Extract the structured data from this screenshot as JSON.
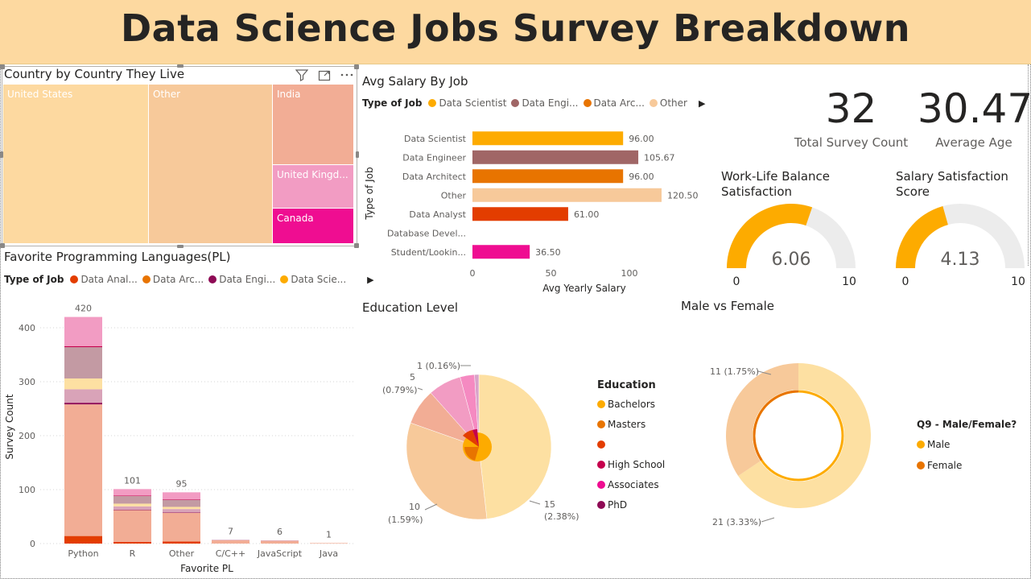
{
  "header": {
    "title": "Data Science Jobs Survey Breakdown"
  },
  "colors": {
    "header_bg": "#fdd9a0",
    "orange": "#fdab00",
    "mauve": "#a06666",
    "dark_orange": "#e87400",
    "peach": "#f7c99a",
    "red_orange": "#e33d00",
    "magenta": "#ef0d91",
    "pink": "#f58ac1",
    "salmon": "#f2ad95",
    "crimson": "#c5004d",
    "purple": "#8e0a55",
    "light_yellow": "#fde0a2",
    "gauge_bg": "#ececec"
  },
  "treemap": {
    "title": "Country by Country They Live",
    "toolbar": {
      "filter_icon": "filter-icon",
      "focus_icon": "focus-mode-icon",
      "more_icon": "more-options-icon"
    },
    "tiles": [
      {
        "label": "United States",
        "color": "#fdd9a0"
      },
      {
        "label": "Other",
        "color": "#f7c99a"
      },
      {
        "label": "India",
        "color": "#f2ad95"
      },
      {
        "label": "United Kingd...",
        "color": "#f29cc3"
      },
      {
        "label": "Canada",
        "color": "#ef0d91"
      }
    ]
  },
  "salary_chart": {
    "title": "Avg Salary By Job",
    "legend": {
      "title": "Type of Job",
      "items": [
        {
          "label": "Data Scientist",
          "color": "#fdab00"
        },
        {
          "label": "Data Engi...",
          "color": "#a06666"
        },
        {
          "label": "Data Arc...",
          "color": "#e87400"
        },
        {
          "label": "Other",
          "color": "#f7c99a"
        }
      ]
    },
    "ylabel": "Type of Job",
    "xlabel": "Avg Yearly Salary"
  },
  "kpis": {
    "total_survey_count": {
      "value": "32",
      "label": "Total Survey Count"
    },
    "average_age": {
      "value": "30.47",
      "label": "Average Age"
    }
  },
  "gauges": {
    "work_life": {
      "title_line1": "Work-Life Balance",
      "title_line2": "Satisfaction",
      "value_label": "6.06",
      "min_label": "0",
      "max_label": "10",
      "value": 6.06,
      "max": 10
    },
    "salary_sat": {
      "title_line1": "Salary Satisfaction",
      "title_line2": "Score",
      "value_label": "4.13",
      "min_label": "0",
      "max_label": "10",
      "value": 4.13,
      "max": 10
    }
  },
  "pl_chart": {
    "title": "Favorite Programming Languages(PL)",
    "legend": {
      "title": "Type of Job",
      "items": [
        {
          "label": "Data Anal...",
          "color": "#e33d00"
        },
        {
          "label": "Data Arc...",
          "color": "#e87400"
        },
        {
          "label": "Data Engi...",
          "color": "#8e0a55"
        },
        {
          "label": "Data Scie...",
          "color": "#fdab00"
        }
      ]
    },
    "xlabel": "Favorite PL",
    "ylabel": "Survey Count"
  },
  "education": {
    "title": "Education Level",
    "legend_title": "Education",
    "legend_items": [
      {
        "label": "Bachelors",
        "color": "#fdab00"
      },
      {
        "label": "Masters",
        "color": "#e87400"
      },
      {
        "label": "",
        "color": "#e33d00"
      },
      {
        "label": "High School",
        "color": "#c5004d"
      },
      {
        "label": "Associates",
        "color": "#ef0d91"
      },
      {
        "label": "PhD",
        "color": "#8e0a55"
      }
    ],
    "data_labels": [
      {
        "line1": "1 (0.16%)",
        "line2": ""
      },
      {
        "line1": "5",
        "line2": "(0.79%)"
      },
      {
        "line1": "10",
        "line2": "(1.59%)"
      },
      {
        "line1": "15",
        "line2": "(2.38%)"
      }
    ]
  },
  "gender": {
    "title": "Male vs Female",
    "legend_title": "Q9 - Male/Female?",
    "legend_items": [
      {
        "label": "Male",
        "color": "#fdab00"
      },
      {
        "label": "Female",
        "color": "#e87400"
      }
    ],
    "data_labels": [
      "11 (1.75%)",
      "21 (3.33%)"
    ]
  },
  "chart_data": [
    {
      "type": "bar",
      "orientation": "horizontal",
      "title": "Avg Salary By Job",
      "xlabel": "Avg Yearly Salary",
      "ylabel": "Type of Job",
      "xlim": [
        0,
        125
      ],
      "xticks": [
        "0",
        "50",
        "100"
      ],
      "categories": [
        "Data Scientist",
        "Data Engineer",
        "Data Architect",
        "Other",
        "Data Analyst",
        "Database Devel...",
        "Student/Lookin..."
      ],
      "values": [
        96.0,
        105.67,
        96.0,
        120.5,
        61.0,
        0,
        36.5
      ],
      "value_labels": [
        "96.00",
        "105.67",
        "96.00",
        "120.50",
        "61.00",
        "",
        "36.50"
      ],
      "colors": [
        "#fdab00",
        "#a06666",
        "#e87400",
        "#f7c99a",
        "#e33d00",
        "#c5004d",
        "#ef0d91"
      ]
    },
    {
      "type": "bar",
      "stacked": true,
      "title": "Favorite Programming Languages(PL)",
      "xlabel": "Favorite PL",
      "ylabel": "Survey Count",
      "ylim": [
        0,
        430
      ],
      "yticks": [
        "0",
        "100",
        "200",
        "300",
        "400"
      ],
      "grid": true,
      "categories": [
        "Python",
        "R",
        "Other",
        "C/C++",
        "JavaScript",
        "Java"
      ],
      "totals": [
        420,
        101,
        95,
        7,
        6,
        1
      ],
      "total_labels": [
        "420",
        "101",
        "95",
        "7",
        "6",
        "1"
      ],
      "segments": [
        {
          "color": "#e33d00",
          "values": [
            14,
            3,
            4,
            0,
            0,
            0
          ]
        },
        {
          "color": "#f2ad95",
          "values": [
            244,
            59,
            53,
            6,
            5,
            1
          ]
        },
        {
          "color": "#8e0a55",
          "values": [
            3,
            1,
            1,
            0,
            0,
            0
          ]
        },
        {
          "color": "#d9a3b8",
          "values": [
            25,
            6,
            6,
            1,
            1,
            0
          ]
        },
        {
          "color": "#fde0a2",
          "values": [
            20,
            5,
            4,
            0,
            0,
            0
          ]
        },
        {
          "color": "#c39aa3",
          "values": [
            58,
            14,
            13,
            0,
            0,
            0
          ]
        },
        {
          "color": "#c5004d",
          "values": [
            2,
            1,
            1,
            0,
            0,
            0
          ]
        },
        {
          "color": "#f29cc3",
          "values": [
            54,
            12,
            13,
            0,
            0,
            0
          ]
        }
      ]
    },
    {
      "type": "pie",
      "title": "Education Level",
      "slices": [
        {
          "label": "Bachelors",
          "value": 15,
          "color": "#fde0a2"
        },
        {
          "label": "Masters",
          "value": 10,
          "color": "#f7c99a"
        },
        {
          "label": "",
          "value": 2.5,
          "color": "#f2ad95"
        },
        {
          "label": "High School",
          "value": 2.3,
          "color": "#f29cc3"
        },
        {
          "label": "Associates",
          "value": 1,
          "color": "#f58ac1"
        },
        {
          "label": "PhD",
          "value": 0.3,
          "color": "#d9a3c9"
        }
      ]
    },
    {
      "type": "pie",
      "donut": true,
      "title": "Male vs Female",
      "slices": [
        {
          "label": "Male",
          "value": 21,
          "color": "#fde0a2"
        },
        {
          "label": "Female",
          "value": 11,
          "color": "#f7c99a"
        }
      ]
    }
  ]
}
